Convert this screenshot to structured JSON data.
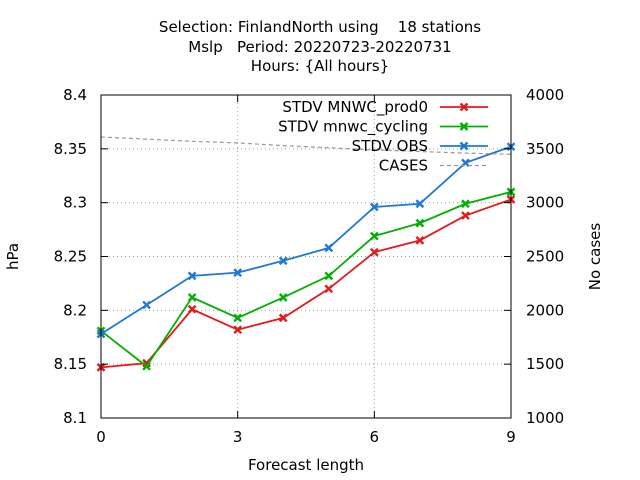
{
  "chart_data": {
    "type": "line",
    "title_lines": [
      "Selection: FinlandNorth using    18 stations",
      "Mslp   Period: 20220723-20220731",
      "Hours: {All hours}"
    ],
    "xlabel": "Forecast length",
    "ylabel": "hPa",
    "y2label": "No cases",
    "xlim": [
      0,
      9
    ],
    "ylim": [
      8.1,
      8.4
    ],
    "y2lim": [
      1000,
      4000
    ],
    "x_ticks": [
      "0",
      "3",
      "6",
      "9"
    ],
    "y_ticks": [
      "8.1",
      "8.15",
      "8.2",
      "8.25",
      "8.3",
      "8.35",
      "8.4"
    ],
    "y2_ticks": [
      "1000",
      "1500",
      "2000",
      "2500",
      "3000",
      "3500",
      "4000"
    ],
    "grid": true,
    "legend_position": "top-right",
    "x": [
      0,
      1,
      2,
      3,
      4,
      5,
      6,
      7,
      8,
      9
    ],
    "series": [
      {
        "name": "STDV MNWC_prod0",
        "color": "#e41a1c",
        "axis": "y1",
        "values": [
          8.147,
          8.151,
          8.201,
          8.182,
          8.193,
          8.22,
          8.254,
          8.265,
          8.288,
          8.303
        ]
      },
      {
        "name": "STDV mnwc_cycling",
        "color": "#00b000",
        "axis": "y1",
        "values": [
          8.181,
          8.148,
          8.212,
          8.193,
          8.212,
          8.232,
          8.269,
          8.281,
          8.299,
          8.31
        ]
      },
      {
        "name": "STDV OBS",
        "color": "#1f78d4",
        "axis": "y1",
        "values": [
          8.178,
          8.205,
          8.232,
          8.235,
          8.246,
          8.258,
          8.296,
          8.299,
          8.337,
          8.352
        ]
      },
      {
        "name": "CASES",
        "color": "#999999",
        "axis": "y2",
        "dashed": true,
        "values": [
          3610,
          3590,
          3570,
          3555,
          3530,
          3510,
          3490,
          3475,
          3460,
          3450
        ]
      }
    ]
  }
}
